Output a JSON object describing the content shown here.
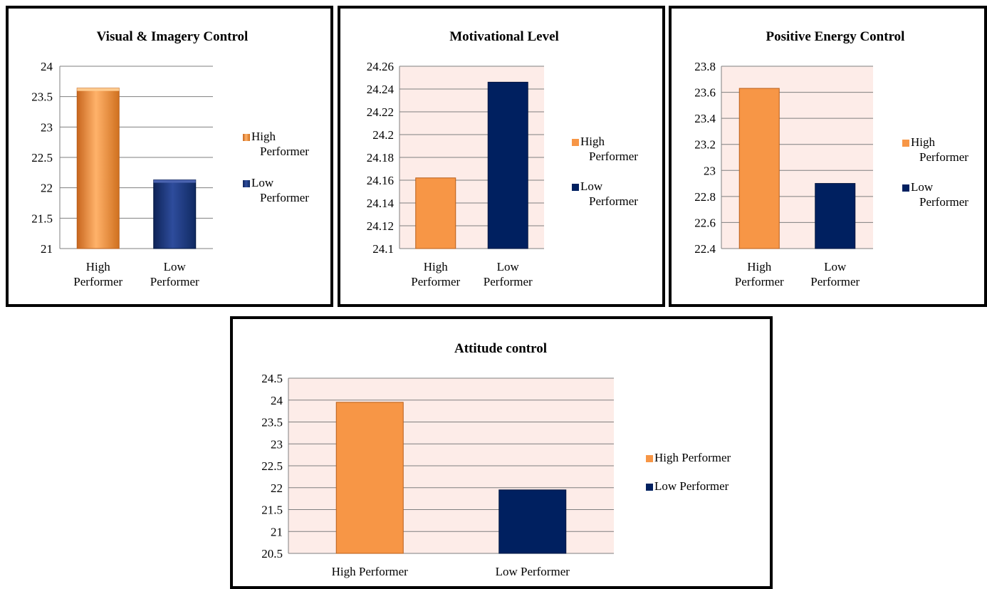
{
  "colors": {
    "high": "#F79646",
    "low": "#002060",
    "plot_bg": "#FDECE8",
    "grid": "#7F7F7F"
  },
  "chart_data": [
    {
      "type": "bar",
      "title": "Visual & Imagery Control",
      "categories": [
        "High Performer",
        "Low Performer"
      ],
      "category_lines": [
        [
          "High",
          "Performer"
        ],
        [
          "Low",
          "Performer"
        ]
      ],
      "series": [
        {
          "name": "High Performer",
          "values": [
            23.64,
            null
          ]
        },
        {
          "name": "Low Performer",
          "values": [
            null,
            22.13
          ]
        }
      ],
      "legend": [
        [
          "High",
          "Performer"
        ],
        [
          "Low",
          "Performer"
        ]
      ],
      "legend_placement": "right",
      "ylim": [
        21,
        24
      ],
      "yticks": [
        "21",
        "21.5",
        "22",
        "22.5",
        "23",
        "23.5",
        "24"
      ],
      "grid": true,
      "style": "3d-gradient",
      "plot_background": "white"
    },
    {
      "type": "bar",
      "title": "Motivational Level",
      "categories": [
        "High Performer",
        "Low Performer"
      ],
      "category_lines": [
        [
          "High",
          "Performer"
        ],
        [
          "Low",
          "Performer"
        ]
      ],
      "series": [
        {
          "name": "High Performer",
          "values": [
            24.162,
            null
          ]
        },
        {
          "name": "Low Performer",
          "values": [
            null,
            24.246
          ]
        }
      ],
      "legend": [
        [
          "High",
          "Performer"
        ],
        [
          "Low",
          "Performer"
        ]
      ],
      "legend_placement": "right",
      "ylim": [
        24.1,
        24.26
      ],
      "yticks": [
        "24.1",
        "24.12",
        "24.14",
        "24.16",
        "24.18",
        "24.2",
        "24.22",
        "24.24",
        "24.26"
      ],
      "grid": true,
      "style": "flat",
      "plot_background": "pink"
    },
    {
      "type": "bar",
      "title": "Positive Energy Control",
      "categories": [
        "High Performer",
        "Low Performer"
      ],
      "category_lines": [
        [
          "High",
          "Performer"
        ],
        [
          "Low",
          "Performer"
        ]
      ],
      "series": [
        {
          "name": "High Performer",
          "values": [
            23.63,
            null
          ]
        },
        {
          "name": "Low Performer",
          "values": [
            null,
            22.9
          ]
        }
      ],
      "legend": [
        [
          "High",
          "Performer"
        ],
        [
          "Low",
          "Performer"
        ]
      ],
      "legend_placement": "right",
      "ylim": [
        22.4,
        23.8
      ],
      "yticks": [
        "22.4",
        "22.6",
        "22.8",
        "23",
        "23.2",
        "23.4",
        "23.6",
        "23.8"
      ],
      "grid": true,
      "style": "flat",
      "plot_background": "pink"
    },
    {
      "type": "bar",
      "title": "Attitude control",
      "categories": [
        "High Performer",
        "Low Performer"
      ],
      "category_lines": [
        [
          "High Performer"
        ],
        [
          "Low Performer"
        ]
      ],
      "series": [
        {
          "name": "High Performer",
          "values": [
            23.95,
            null
          ]
        },
        {
          "name": "Low Performer",
          "values": [
            null,
            21.95
          ]
        }
      ],
      "legend": [
        [
          "High Performer"
        ],
        [
          "Low Performer"
        ]
      ],
      "legend_placement": "right",
      "ylim": [
        20.5,
        24.5
      ],
      "yticks": [
        "20.5",
        "21",
        "21.5",
        "22",
        "22.5",
        "23",
        "23.5",
        "24",
        "24.5"
      ],
      "grid": true,
      "style": "flat",
      "plot_background": "pink"
    }
  ]
}
